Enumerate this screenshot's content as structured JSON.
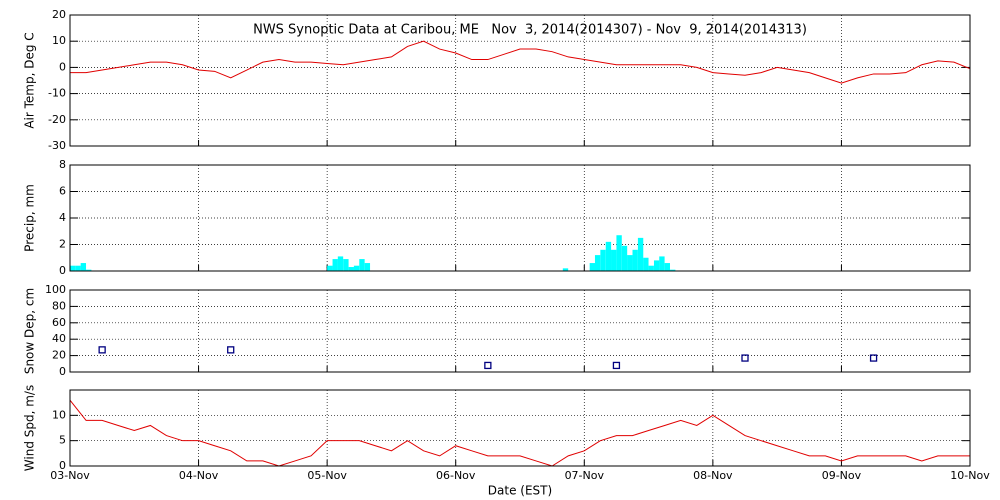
{
  "chart_data": [
    {
      "type": "line",
      "title": "NWS Synoptic Data at Caribou, ME   Nov  3, 2014(2014307) - Nov  9, 2014(2014313)",
      "ylabel": "Air Temp, Deg C",
      "xlim": [
        0,
        7
      ],
      "ylim": [
        -30,
        20
      ],
      "yticks": [
        -30,
        -20,
        -10,
        0,
        10,
        20
      ],
      "grid": true,
      "series": [
        {
          "color": "#e00000",
          "x": [
            0,
            0.125,
            0.25,
            0.375,
            0.5,
            0.625,
            0.75,
            0.875,
            1,
            1.125,
            1.25,
            1.375,
            1.5,
            1.625,
            1.75,
            1.875,
            2,
            2.125,
            2.25,
            2.375,
            2.5,
            2.625,
            2.75,
            2.875,
            3,
            3.125,
            3.25,
            3.375,
            3.5,
            3.625,
            3.75,
            3.875,
            4,
            4.125,
            4.25,
            4.375,
            4.5,
            4.625,
            4.75,
            4.875,
            5,
            5.125,
            5.25,
            5.375,
            5.5,
            5.625,
            5.75,
            5.875,
            6,
            6.125,
            6.25,
            6.375,
            6.5,
            6.625,
            6.75,
            6.875,
            7
          ],
          "values": [
            -2,
            -2,
            -1,
            0,
            1,
            2,
            2,
            1,
            -1,
            -1.5,
            -4,
            -1,
            2,
            3,
            2,
            2,
            1.5,
            1,
            2,
            3,
            4,
            8,
            10,
            7,
            5.5,
            3,
            3,
            5,
            7,
            7,
            6,
            4,
            3,
            2,
            1,
            1,
            1,
            1,
            1,
            0,
            -2,
            -2.5,
            -3,
            -2,
            0,
            -1,
            -2,
            -4,
            -6,
            -4,
            -2.5,
            -2.5,
            -2,
            1,
            2.5,
            2,
            -0.5
          ]
        }
      ]
    },
    {
      "type": "bar",
      "ylabel": "Precip, mm",
      "xlim": [
        0,
        7
      ],
      "ylim": [
        0,
        8
      ],
      "yticks": [
        0,
        2,
        4,
        6,
        8
      ],
      "grid": true,
      "series": [
        {
          "color": "#00ffff",
          "x": [
            0,
            0.042,
            0.083,
            0.125,
            2,
            2.042,
            2.083,
            2.125,
            2.167,
            2.208,
            2.25,
            2.292,
            3.833,
            4.042,
            4.083,
            4.125,
            4.167,
            4.208,
            4.25,
            4.292,
            4.333,
            4.375,
            4.417,
            4.458,
            4.5,
            4.542,
            4.583,
            4.625,
            4.667
          ],
          "values": [
            0.4,
            0.4,
            0.6,
            0.1,
            0.4,
            0.9,
            1.1,
            0.9,
            0.3,
            0.4,
            0.9,
            0.6,
            0.2,
            0.6,
            1.2,
            1.6,
            2.2,
            1.6,
            2.7,
            1.9,
            1.2,
            1.6,
            2.5,
            1.0,
            0.4,
            0.8,
            1.1,
            0.6,
            0.1
          ]
        }
      ]
    },
    {
      "type": "scatter",
      "ylabel": "Snow Dep, cm",
      "xlim": [
        0,
        7
      ],
      "ylim": [
        0,
        100
      ],
      "yticks": [
        0,
        20,
        40,
        60,
        80,
        100
      ],
      "grid": true,
      "series": [
        {
          "color": "#000080",
          "x": [
            0.25,
            1.25,
            3.25,
            4.25,
            5.25,
            6.25
          ],
          "values": [
            27,
            27,
            8,
            8,
            17,
            17
          ]
        }
      ]
    },
    {
      "type": "line",
      "ylabel": "Wind Spd, m/s",
      "xlabel": "Date (EST)",
      "xlim": [
        0,
        7
      ],
      "ylim": [
        0,
        15
      ],
      "yticks": [
        0,
        5,
        10
      ],
      "grid": true,
      "xticks": [
        {
          "value": 0,
          "label": "03-Nov"
        },
        {
          "value": 1,
          "label": "04-Nov"
        },
        {
          "value": 2,
          "label": "05-Nov"
        },
        {
          "value": 3,
          "label": "06-Nov"
        },
        {
          "value": 4,
          "label": "07-Nov"
        },
        {
          "value": 5,
          "label": "08-Nov"
        },
        {
          "value": 6,
          "label": "09-Nov"
        },
        {
          "value": 7,
          "label": "10-Nov"
        }
      ],
      "series": [
        {
          "color": "#e00000",
          "x": [
            0,
            0.125,
            0.25,
            0.375,
            0.5,
            0.625,
            0.75,
            0.875,
            1,
            1.125,
            1.25,
            1.375,
            1.5,
            1.625,
            1.75,
            1.875,
            2,
            2.125,
            2.25,
            2.375,
            2.5,
            2.625,
            2.75,
            2.875,
            3,
            3.125,
            3.25,
            3.375,
            3.5,
            3.625,
            3.75,
            3.875,
            4,
            4.125,
            4.25,
            4.375,
            4.5,
            4.625,
            4.75,
            4.875,
            5,
            5.125,
            5.25,
            5.375,
            5.5,
            5.625,
            5.75,
            5.875,
            6,
            6.125,
            6.25,
            6.375,
            6.5,
            6.625,
            6.75,
            6.875,
            7
          ],
          "values": [
            13,
            9,
            9,
            8,
            7,
            8,
            6,
            5,
            5,
            4,
            3,
            1,
            1,
            0,
            1,
            2,
            5,
            5,
            5,
            4,
            3,
            5,
            3,
            2,
            4,
            3,
            2,
            2,
            2,
            1,
            0,
            2,
            3,
            5,
            6,
            6,
            7,
            8,
            9,
            8,
            10,
            8,
            6,
            5,
            4,
            3,
            2,
            2,
            1,
            2,
            2,
            2,
            2,
            1,
            2,
            2,
            2
          ]
        }
      ]
    }
  ]
}
